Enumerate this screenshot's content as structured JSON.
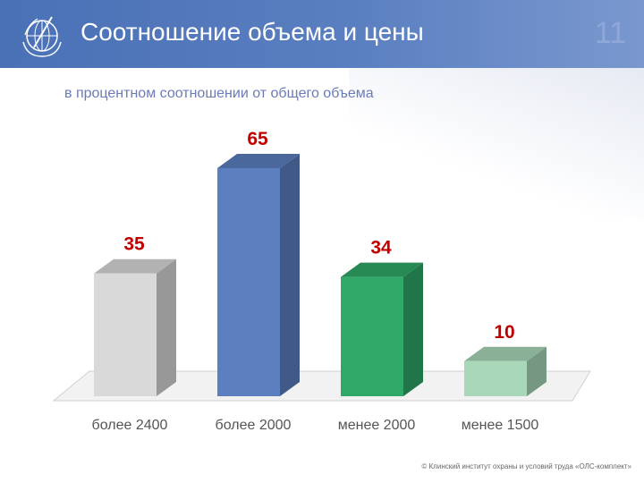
{
  "header": {
    "title": "Соотношение объема и цены",
    "slide_number": "11"
  },
  "subtitle": "в процентном соотношении от общего объема",
  "footer": "© Клинский институт охраны и условий труда «ОЛС-комплект»",
  "chart_data": {
    "type": "bar",
    "title": "",
    "xlabel": "",
    "ylabel": "",
    "categories": [
      "более 2400",
      "более 2000",
      "менее 2000",
      "менее 1500"
    ],
    "values": [
      35,
      65,
      34,
      10
    ],
    "ylim": [
      0,
      70
    ],
    "colors": [
      "#d9d9d9",
      "#5b7fbf",
      "#2fa868",
      "#a8d8b8"
    ],
    "label_color": "#c00000"
  }
}
